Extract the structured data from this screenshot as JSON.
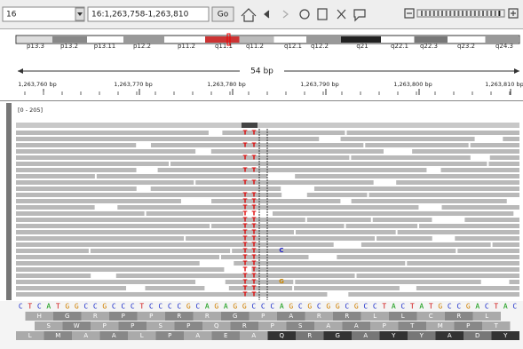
{
  "toolbar": {
    "chromosome": "16",
    "locus": "16:1,263,758-1,263,810",
    "go": "Go"
  },
  "ideogram": {
    "bands": [
      "p13.3",
      "p13.2",
      "p13.11",
      "p12.2",
      "p11.2",
      "q11.1",
      "q11.2",
      "q12.1",
      "q12.2",
      "q21",
      "q22.1",
      "q22.3",
      "q23.2",
      "q24.3"
    ]
  },
  "ruler": {
    "span": "54 bp",
    "ticks": [
      "1,263,760 bp",
      "1,263,770 bp",
      "1,263,780 bp",
      "1,263,790 bp",
      "1,263,800 bp",
      "1,263,810 bp"
    ]
  },
  "coverage": {
    "range": "[0 - 205]"
  },
  "alignments": {
    "mismatch_bases": [
      "T",
      "C",
      "G"
    ]
  },
  "sequence": {
    "reference": "CTCATGGCCGCCCTCCCCGCAGAGGCCCAGCGCGGCGCCTACTATGCCGACTAC",
    "frames": [
      "HGRPPRRGPARRLLCRL",
      "SWPPSPQRPSAAPTMPT",
      "LMAALPAEAQRGAYYADY"
    ]
  }
}
